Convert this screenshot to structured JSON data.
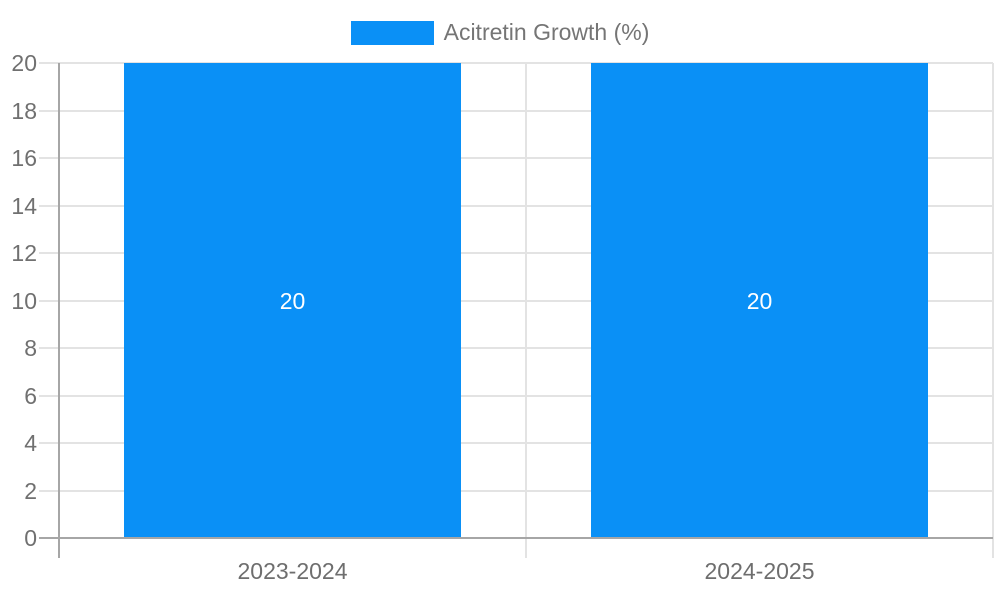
{
  "chart_data": {
    "type": "bar",
    "title": "",
    "categories": [
      "2023-2024",
      "2024-2025"
    ],
    "series": [
      {
        "name": "Acitretin Growth (%)",
        "color": "#0a90f6",
        "values": [
          20,
          20
        ],
        "data_labels": [
          "20",
          "20"
        ]
      }
    ],
    "xlabel": "",
    "ylabel": "",
    "ylim": [
      0,
      20
    ],
    "yticks": [
      0,
      2,
      4,
      6,
      8,
      10,
      12,
      14,
      16,
      18,
      20
    ],
    "grid": true,
    "legend_position": "top-center",
    "data_label_position": "center"
  },
  "colors": {
    "bar": "#0a90f6",
    "gridline": "#e3e3e3",
    "axis": "#a6a6a6",
    "tick_label": "#707070",
    "category_label": "#6e6e6e",
    "legend_text": "#757575",
    "bar_label": "#ffffff",
    "background": "#ffffff"
  }
}
